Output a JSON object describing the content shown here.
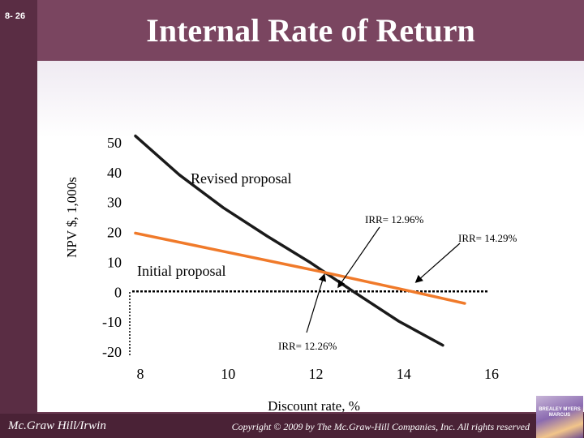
{
  "slide": {
    "number": "8- 26",
    "title": "Internal Rate of Return"
  },
  "footer": {
    "publisher": "Mc.Graw Hill/Irwin",
    "copyright": "Copyright © 2009 by The Mc.Graw-Hill Companies, Inc. All rights reserved",
    "logo_text": "BREALEY MYERS MARCUS"
  },
  "colors": {
    "background": "#6b3a52",
    "revised_line": "#1a1a1a",
    "initial_line": "#f07a2a",
    "zero_line": "#000000"
  },
  "chart_data": {
    "type": "line",
    "title": "",
    "xlabel": "Discount rate, %",
    "ylabel": "NPV $, 1,000s",
    "xlim": [
      8,
      16
    ],
    "ylim": [
      -20,
      50
    ],
    "x_ticks": [
      8,
      10,
      12,
      14,
      16
    ],
    "y_ticks": [
      50,
      40,
      30,
      20,
      10,
      0,
      -10,
      -20
    ],
    "grid": false,
    "series": [
      {
        "name": "Revised proposal",
        "x": [
          8,
          9,
          10,
          11,
          12,
          12.96,
          14,
          15
        ],
        "y": [
          52,
          39,
          28,
          18.5,
          9.5,
          0,
          -10,
          -18
        ]
      },
      {
        "name": "Initial proposal",
        "x": [
          8,
          12.26,
          14.29,
          15.5
        ],
        "y": [
          19.5,
          6.5,
          0,
          -4
        ]
      }
    ],
    "annotations": [
      {
        "text": "IRR= 12.96%",
        "x": 12.96,
        "y": 0
      },
      {
        "text": "IRR= 14.29%",
        "x": 14.29,
        "y": 0
      },
      {
        "text": "IRR= 12.26%",
        "x": 12.26,
        "y": 6.5
      }
    ]
  }
}
